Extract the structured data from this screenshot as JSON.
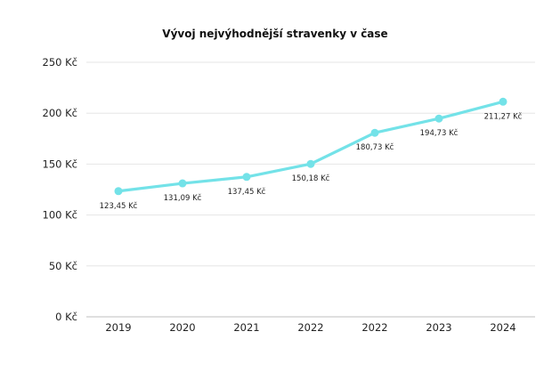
{
  "chart_data": {
    "type": "line",
    "title": "Vývoj nejvýhodnější stravenky v čase",
    "xlabel": "",
    "ylabel": "",
    "categories": [
      "2019",
      "2020",
      "2021",
      "2022",
      "2022",
      "2023",
      "2024"
    ],
    "series": [
      {
        "values": [
          123.45,
          131.09,
          137.45,
          150.18,
          180.73,
          194.73,
          211.27
        ],
        "data_labels": [
          "123,45 Kč",
          "131,09 Kč",
          "137,45 Kč",
          "150,18 Kč",
          "180,73 Kč",
          "194,73 Kč",
          "211,27 Kč"
        ]
      }
    ],
    "ylim": [
      0,
      250
    ],
    "yticks": [
      0,
      50,
      100,
      150,
      200,
      250
    ],
    "ytick_labels": [
      "0 Kč",
      "50 Kč",
      "100 Kč",
      "150 Kč",
      "200 Kč",
      "250 Kč"
    ],
    "grid": true,
    "legend": "none",
    "colors": {
      "line": "#73e2e8",
      "grid": "#e6e6e6",
      "axis": "#bfbfbf"
    }
  }
}
